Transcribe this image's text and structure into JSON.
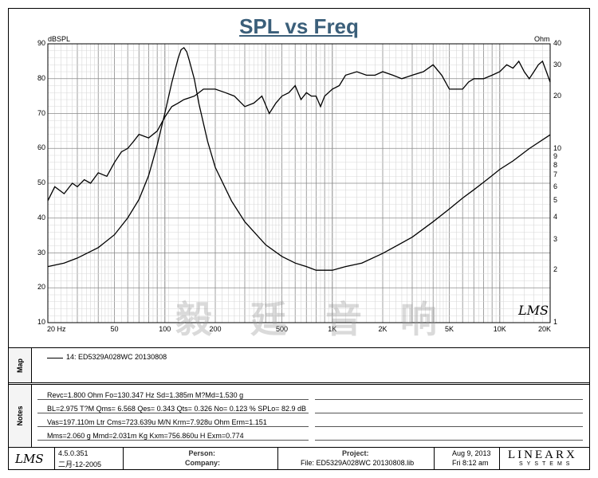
{
  "chart_data": {
    "type": "line",
    "title": "SPL vs Freq",
    "y_left_unit": "dBSPL",
    "y_right_unit": "Ohm",
    "x_scale": "log",
    "xlim": [
      20,
      20000
    ],
    "ylim_left": [
      10,
      90
    ],
    "ylim_right": [
      1,
      40
    ],
    "y_right_scale": "log",
    "x_tick_labels": [
      "20 Hz",
      "50",
      "100",
      "200",
      "500",
      "1K",
      "2K",
      "5K",
      "10K",
      "20K"
    ],
    "y_left_tick_labels": [
      "90",
      "80",
      "70",
      "60",
      "50",
      "40",
      "30",
      "20",
      "10"
    ],
    "y_right_tick_labels": [
      "40",
      "30",
      "20",
      "10",
      "9",
      "8",
      "7",
      "6",
      "5",
      "4",
      "3",
      "2",
      "1"
    ],
    "grid": true,
    "series": [
      {
        "axis": "left",
        "unit": "dBSPL",
        "x": [
          20,
          22,
          25,
          28,
          30,
          33,
          36,
          40,
          45,
          50,
          55,
          60,
          65,
          70,
          80,
          90,
          100,
          110,
          120,
          130,
          140,
          150,
          170,
          200,
          230,
          260,
          300,
          340,
          380,
          420,
          460,
          500,
          550,
          600,
          650,
          700,
          750,
          800,
          850,
          900,
          1000,
          1100,
          1200,
          1400,
          1600,
          1800,
          2000,
          2300,
          2600,
          3000,
          3500,
          4000,
          4500,
          5000,
          5500,
          6000,
          6500,
          7000,
          8000,
          9000,
          10000,
          11000,
          12000,
          13000,
          14000,
          15000,
          16000,
          17000,
          18000,
          19000,
          20000
        ],
        "y": [
          45,
          49,
          47,
          50,
          49,
          51,
          50,
          53,
          52,
          56,
          59,
          60,
          62,
          64,
          63,
          65,
          69,
          72,
          73,
          74,
          74.5,
          75,
          77,
          77,
          76,
          75,
          72,
          73,
          75,
          70,
          73,
          75,
          76,
          78,
          74,
          76,
          75,
          75,
          72,
          75,
          77,
          78,
          81,
          82,
          81,
          81,
          82,
          81,
          80,
          81,
          82,
          84,
          81,
          77,
          77,
          77,
          79,
          80,
          80,
          81,
          82,
          84,
          83,
          85,
          82,
          80,
          82,
          84,
          85,
          82,
          79
        ]
      },
      {
        "axis": "right",
        "unit": "Ohm",
        "x": [
          20,
          25,
          30,
          40,
          50,
          60,
          70,
          80,
          90,
          100,
          110,
          120,
          125,
          130,
          135,
          140,
          150,
          160,
          180,
          200,
          250,
          300,
          400,
          500,
          600,
          700,
          800,
          900,
          1000,
          1200,
          1500,
          2000,
          3000,
          4000,
          5000,
          6000,
          7000,
          8000,
          9000,
          10000,
          12000,
          15000,
          20000
        ],
        "y": [
          2.1,
          2.2,
          2.35,
          2.7,
          3.2,
          4.0,
          5.1,
          7.0,
          10.5,
          16,
          24,
          33,
          37,
          38,
          36,
          32,
          25,
          18,
          11,
          7.8,
          5.0,
          3.8,
          2.8,
          2.4,
          2.2,
          2.1,
          2.0,
          2.0,
          2.0,
          2.1,
          2.2,
          2.5,
          3.1,
          3.8,
          4.5,
          5.2,
          5.8,
          6.4,
          7.0,
          7.6,
          8.5,
          10,
          12
        ]
      }
    ]
  },
  "map": {
    "label": "Map",
    "entry": "14: ED5329A028WC   20130808"
  },
  "notes": {
    "label": "Notes",
    "lines": [
      "Revc=1.800 Ohm  Fo=130.347 Hz  Sd=1.385m M?Md=1.530 g",
      "BL=2.975 T?M  Qms= 6.568  Qes= 0.343  Qts= 0.326  No= 0.123 %  SPLo= 82.9 dB",
      "Vas=197.110m Ltr  Cms=723.639u M/N  Krm=7.928u Ohm  Erm=1.151",
      "Mms=2.060 g  Mmd=2.031m Kg  Kxm=756.860u H  Exm=0.774"
    ]
  },
  "watermark": "毅 廷 音 响",
  "plot_logo": "LMS",
  "footer": {
    "logo": "LMS",
    "version": "4.5.0.351",
    "date_built": "二月-12-2005",
    "person_label": "Person:",
    "company_label": "Company:",
    "project_label": "Project:",
    "file_label": "File: ED5329A028WC  20130808.lib",
    "date": "Aug  9, 2013",
    "time": "Fri  8:12 am",
    "brand_top": "LINEARX",
    "brand_bottom": "SYSTEMS"
  }
}
